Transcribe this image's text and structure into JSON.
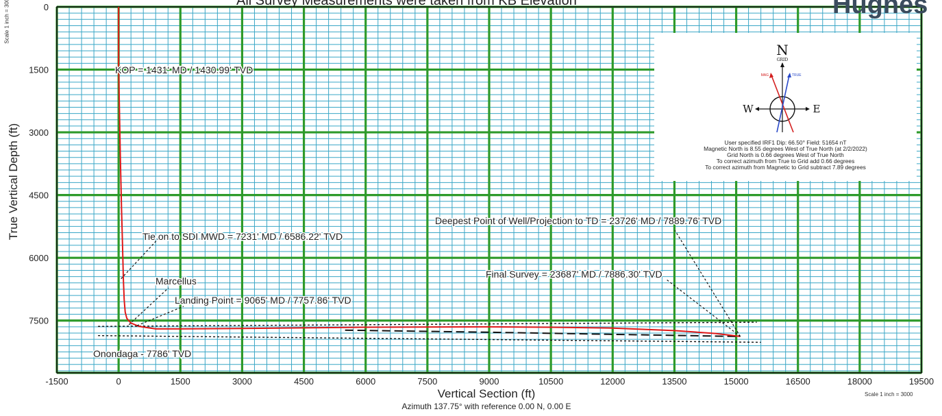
{
  "header": {
    "title": "All Survey Measurements were taken from KB Elevation",
    "logo_text": "Hughes"
  },
  "scale_note": "Scale 1 inch = 3000",
  "chart_data": {
    "type": "line",
    "xlabel": "Vertical Section (ft)",
    "ylabel": "True Vertical Depth (ft)",
    "subtitle": "Azimuth 137.75° with reference 0.00 N, 0.00 E",
    "xlim": [
      -1500,
      19500
    ],
    "ylim": [
      0,
      8750
    ],
    "y_inverted": true,
    "x_ticks": [
      -1500,
      0,
      1500,
      3000,
      4500,
      6000,
      7500,
      9000,
      10500,
      12000,
      13500,
      15000,
      16500,
      18000,
      19500
    ],
    "y_ticks": [
      0,
      1500,
      3000,
      4500,
      6000,
      7500
    ],
    "grid": true,
    "series": [
      {
        "color": "#e01818",
        "x": [
          0,
          0,
          15,
          40,
          70,
          95,
          115,
          135,
          160,
          200,
          300,
          500,
          900,
          1500,
          3000,
          6000,
          9000,
          10500,
          12000,
          13500,
          14500,
          15100
        ],
        "y": [
          0,
          1431,
          2200,
          3500,
          4800,
          5700,
          6500,
          7000,
          7300,
          7450,
          7560,
          7640,
          7700,
          7700,
          7690,
          7660,
          7650,
          7660,
          7680,
          7740,
          7810,
          7880
        ]
      }
    ],
    "formations": [
      {
        "name": "Marcellus",
        "x": [
          -500,
          15500
        ],
        "y": [
          7640,
          7540
        ]
      },
      {
        "name": "Onondaga",
        "x": [
          -500,
          15600
        ],
        "y": [
          7860,
          8020
        ]
      }
    ],
    "annotations": [
      "KOP = 1431' MD / 1430.99' TVD",
      "Tie on to SDI MWD = 7231' MD / 6586.22' TVD",
      "Marcellus",
      "Landing Point = 9065' MD / 7757.86' TVD",
      "Onondaga - 7786' TVD",
      "Deepest Point of Well/Projection to TD = 23726' MD / 7889.76' TVD",
      "Final Survey = 23687' MD / 7886.30' TVD"
    ]
  },
  "compass": {
    "north_letter": "N",
    "grid_label": "GRID",
    "mag_label": "MAG",
    "true_label": "TRUE",
    "west_letter": "W",
    "east_letter": "E",
    "lines": [
      "User specified IRF1 Dip: 66.50°  Field: 51654 nT",
      "Magnetic North is 8.55 degrees West of True North (at 2/2/2022)",
      "Grid North is 0.66 degrees West of True North",
      "To correct azimuth from True to Grid add 0.66 degrees",
      "To correct azimuth from Magnetic to Grid subtract 7.89 degrees"
    ]
  }
}
